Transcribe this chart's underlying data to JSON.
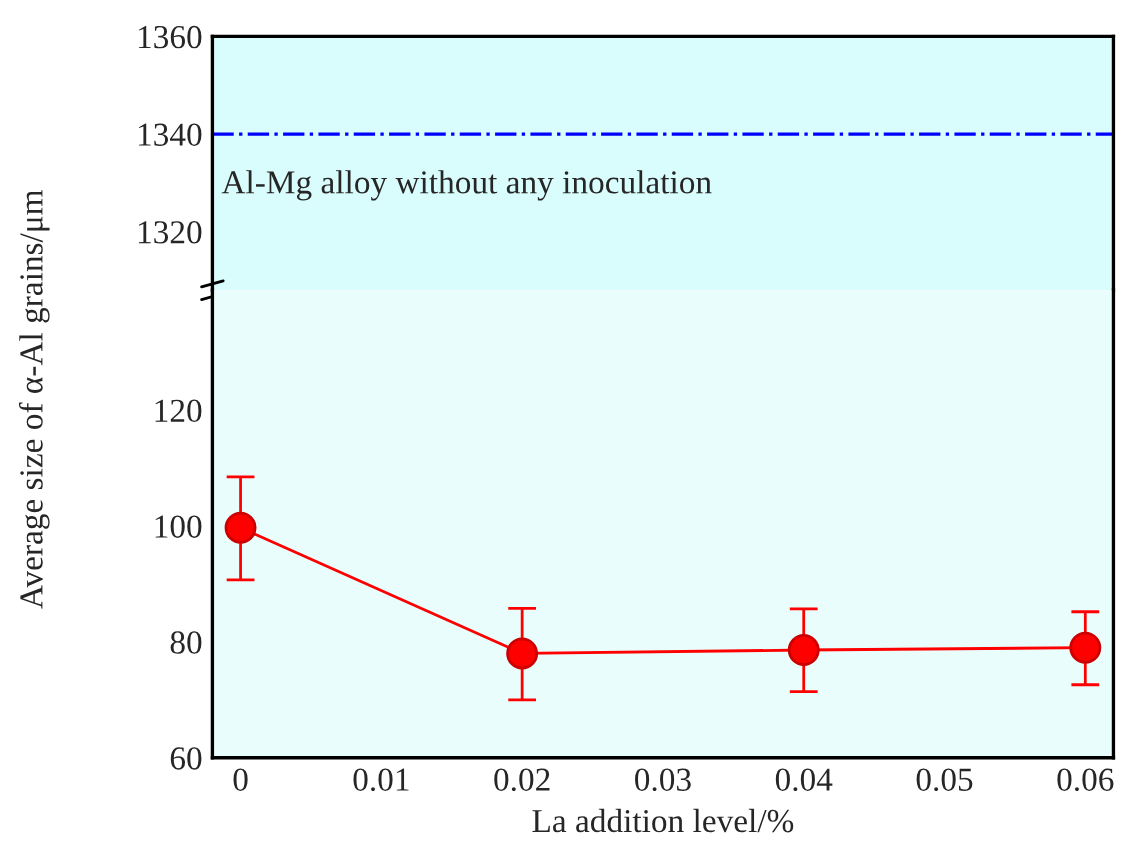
{
  "chart_data": [
    {
      "type": "line",
      "xlim": [
        -0.002,
        0.062
      ],
      "ylim": [
        1308,
        1360
      ],
      "yticks": [
        1320,
        1340,
        1360
      ],
      "tick_labels": "y",
      "ylabel": "Average size of α-Al grains/μm",
      "ref_lines": [
        {
          "axis": "y",
          "value": 1340,
          "label": "Al-Mg alloy without any inoculation",
          "color": "#0000ff",
          "line_style": "dashdot"
        }
      ]
    },
    {
      "type": "line",
      "x": [
        0,
        0.02,
        0.04,
        0.06
      ],
      "xlim": [
        -0.002,
        0.062
      ],
      "xticks": [
        0,
        0.01,
        0.02,
        0.03,
        0.04,
        0.05,
        0.06
      ],
      "ylim": [
        60,
        140.7
      ],
      "yticks": [
        60,
        80,
        100,
        120
      ],
      "xlabel": "La addition level/%",
      "marker": "circle",
      "series": [
        {
          "color": "#ff0000",
          "values": [
            99.7,
            78.0,
            78.6,
            79.0
          ],
          "errors": [
            [
              90.7,
              108.5
            ],
            [
              70.0,
              85.8
            ],
            [
              71.4,
              85.7
            ],
            [
              72.6,
              85.2
            ]
          ]
        }
      ]
    }
  ]
}
